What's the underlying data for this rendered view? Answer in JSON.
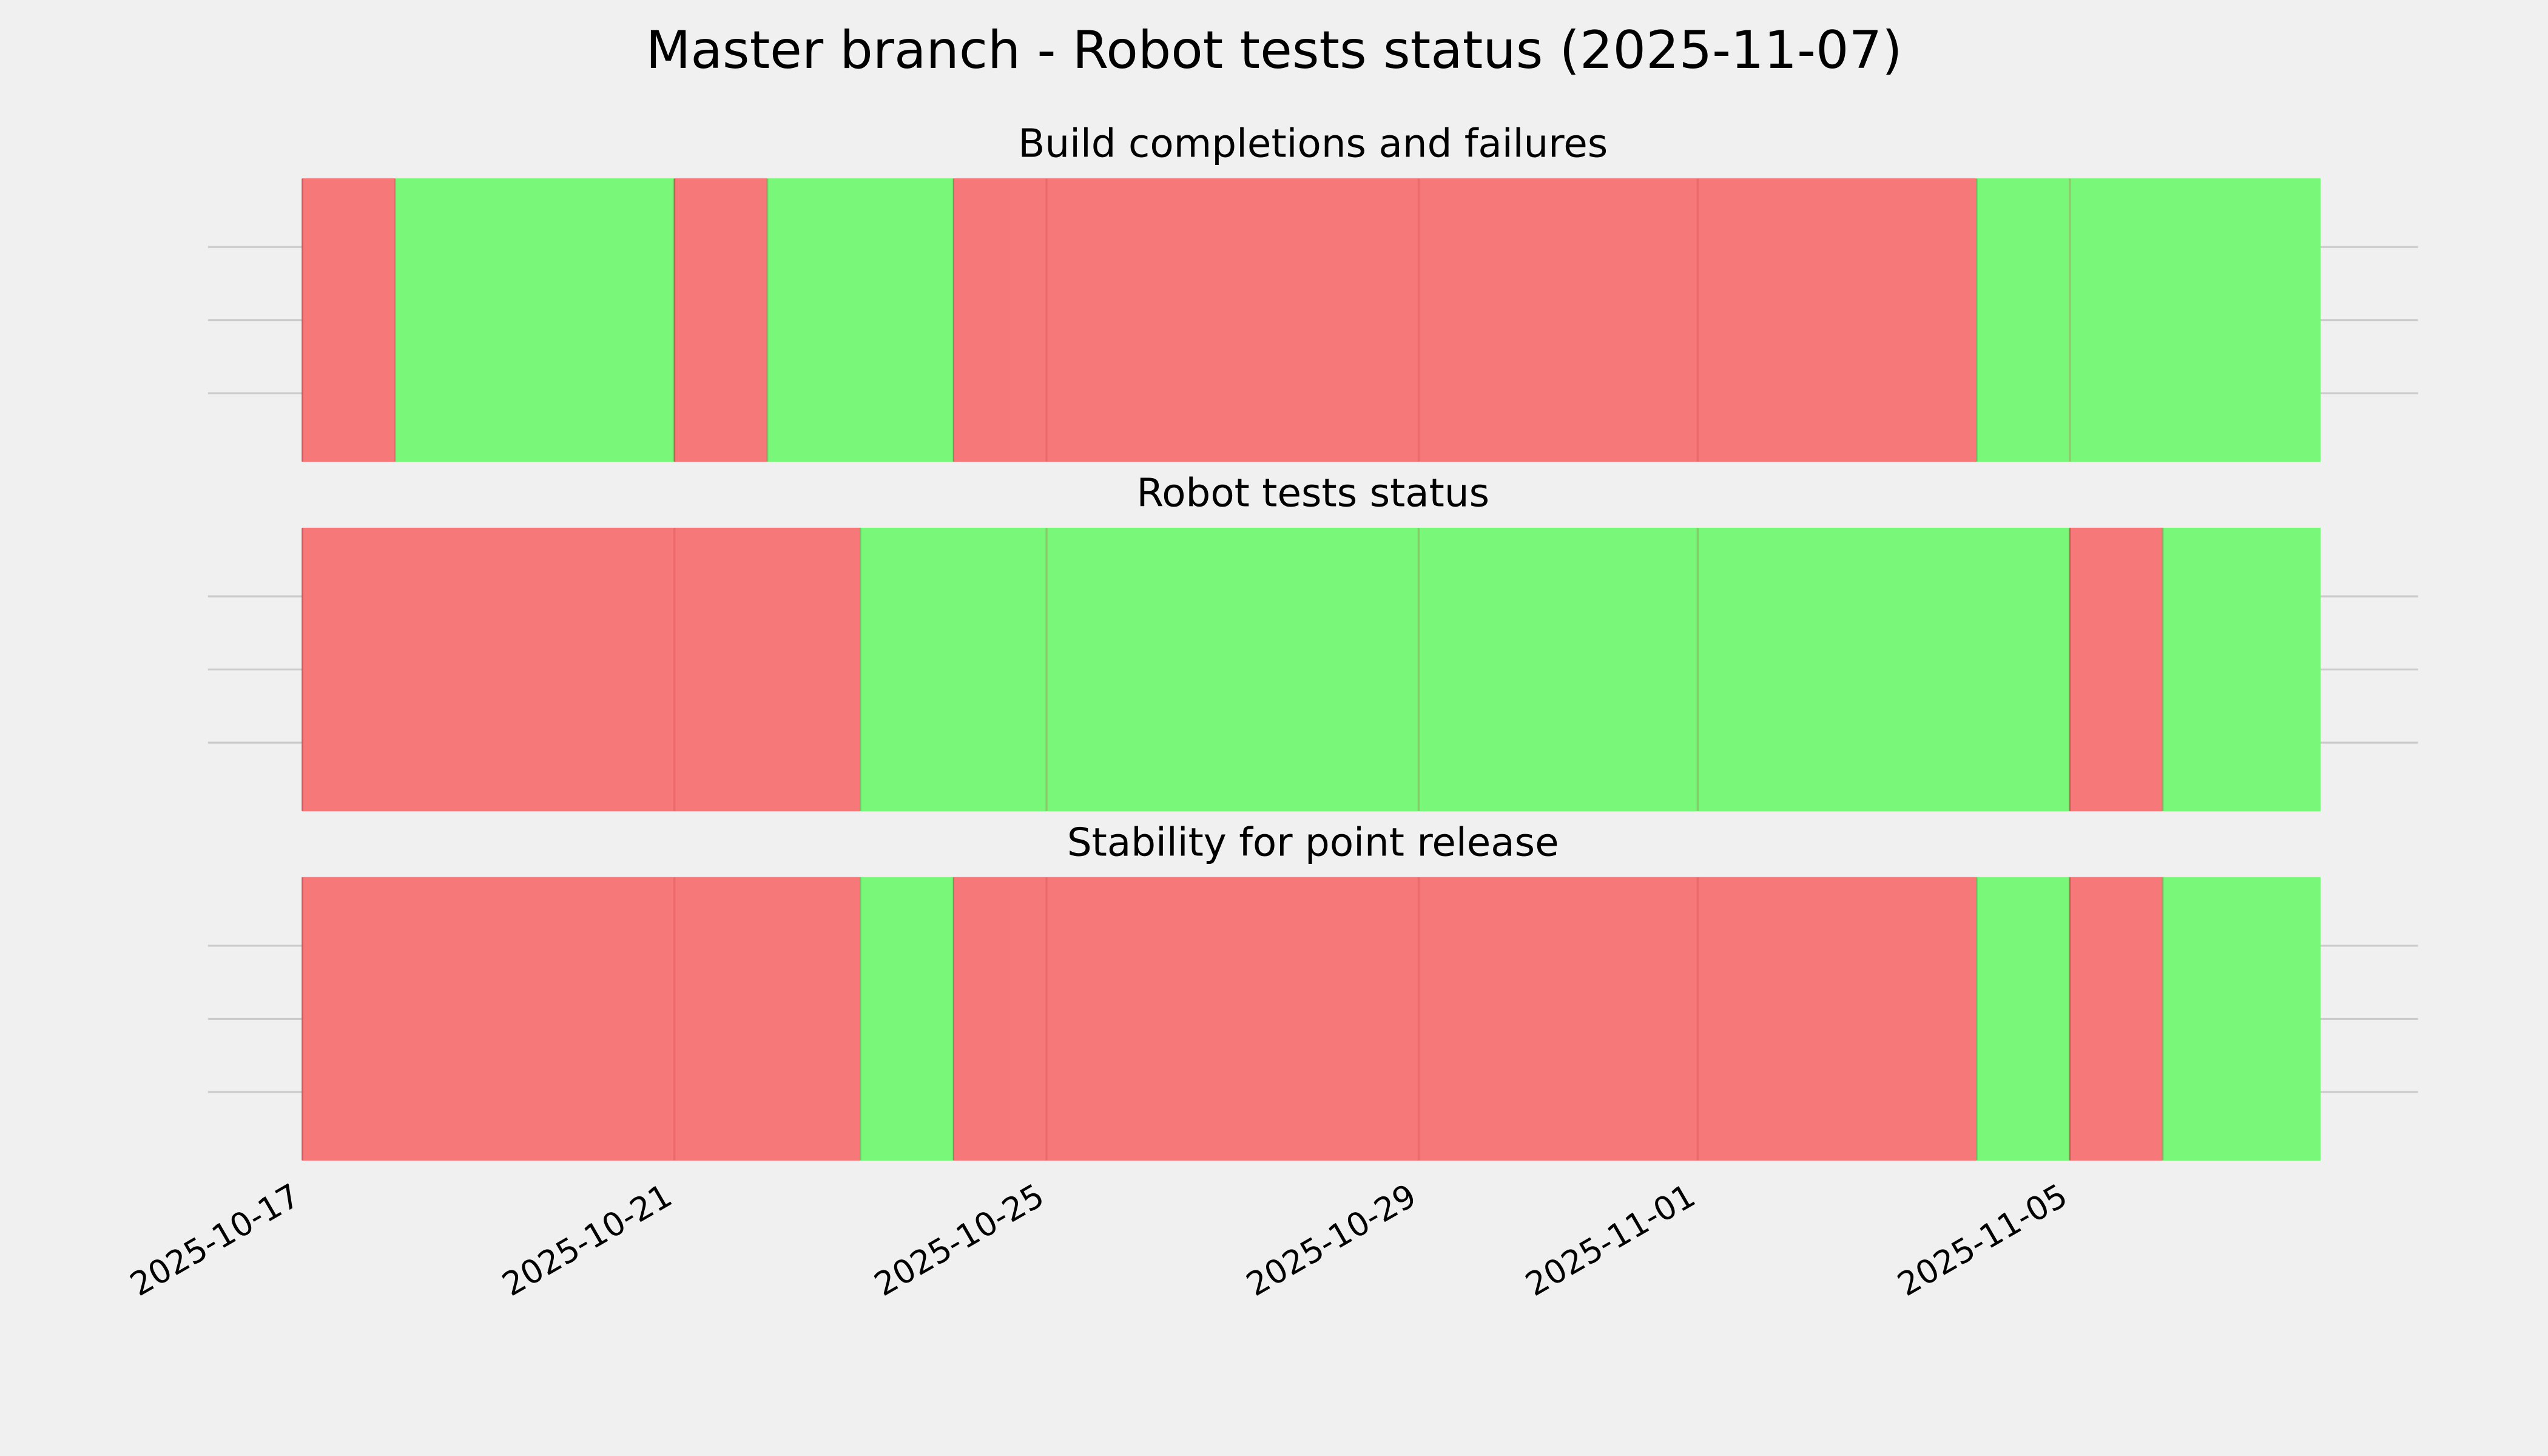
{
  "title": "Master branch - Robot tests status (2025-11-07)",
  "x_axis": {
    "xlim": [
      "2025-10-15T23:40",
      "2025-11-08T17:50"
    ],
    "xticks": [
      "2025-10-17",
      "2025-10-21",
      "2025-10-25",
      "2025-10-29",
      "2025-11-01",
      "2025-11-05"
    ]
  },
  "chart_data": [
    {
      "type": "timeline",
      "title": "Build completions and failures",
      "segments": [
        {
          "start": "2025-10-17",
          "end": "2025-10-18",
          "color": "#f77878"
        },
        {
          "start": "2025-10-18",
          "end": "2025-10-21",
          "color": "#78f778"
        },
        {
          "start": "2025-10-21",
          "end": "2025-10-22",
          "color": "#f77878"
        },
        {
          "start": "2025-10-22",
          "end": "2025-10-24",
          "color": "#78f778"
        },
        {
          "start": "2025-10-24",
          "end": "2025-11-04",
          "color": "#f77878"
        },
        {
          "start": "2025-11-04",
          "end": "2025-11-07T16:35",
          "color": "#78f778"
        }
      ]
    },
    {
      "type": "timeline",
      "title": "Robot tests status",
      "segments": [
        {
          "start": "2025-10-17",
          "end": "2025-10-23",
          "color": "#f77878"
        },
        {
          "start": "2025-10-23",
          "end": "2025-11-05",
          "color": "#78f778"
        },
        {
          "start": "2025-11-05",
          "end": "2025-11-06",
          "color": "#f77878"
        },
        {
          "start": "2025-11-06",
          "end": "2025-11-07T16:35",
          "color": "#78f778"
        }
      ]
    },
    {
      "type": "timeline",
      "title": "Stability for point release",
      "segments": [
        {
          "start": "2025-10-17",
          "end": "2025-10-23",
          "color": "#f77878"
        },
        {
          "start": "2025-10-23",
          "end": "2025-10-24",
          "color": "#78f778"
        },
        {
          "start": "2025-10-24",
          "end": "2025-11-04",
          "color": "#f77878"
        },
        {
          "start": "2025-11-04",
          "end": "2025-11-05",
          "color": "#78f778"
        },
        {
          "start": "2025-11-05",
          "end": "2025-11-06",
          "color": "#f77878"
        },
        {
          "start": "2025-11-06",
          "end": "2025-11-07T16:35",
          "color": "#78f778"
        }
      ]
    }
  ]
}
